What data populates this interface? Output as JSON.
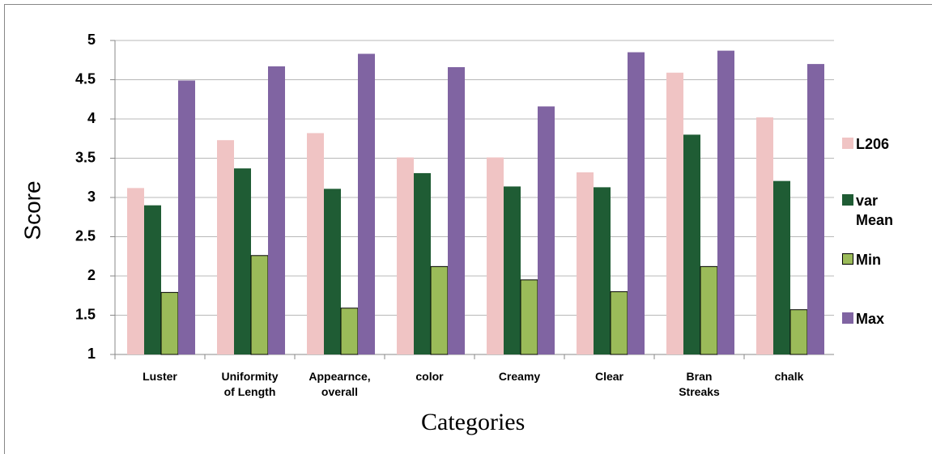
{
  "chart_data": {
    "type": "bar",
    "x_label": "Categories",
    "y_label": "Score",
    "categories": [
      "Luster",
      "Uniformity of Length",
      "Appearnce, overall",
      "color",
      "Creamy",
      "Clear",
      "Bran Streaks",
      "chalk"
    ],
    "series": [
      {
        "name": "L206",
        "color": "#f0c4c4",
        "values": [
          3.12,
          3.73,
          3.82,
          3.51,
          3.51,
          3.32,
          4.59,
          4.02
        ]
      },
      {
        "name": "var Mean",
        "color": "#1f5c34",
        "values": [
          2.9,
          3.37,
          3.11,
          3.31,
          3.14,
          3.13,
          3.8,
          3.21
        ]
      },
      {
        "name": "Min",
        "color": "#9bbb59",
        "values": [
          1.79,
          2.26,
          1.59,
          2.12,
          1.95,
          1.8,
          2.12,
          1.57
        ]
      },
      {
        "name": "Max",
        "color": "#8064a2",
        "values": [
          4.49,
          4.67,
          4.83,
          4.66,
          4.16,
          4.85,
          4.87,
          4.7
        ]
      }
    ],
    "ylim": [
      1,
      5
    ],
    "yticks": [
      1,
      1.5,
      2,
      2.5,
      3,
      3.5,
      4,
      4.5,
      5
    ],
    "grid": true,
    "legend": "right"
  }
}
